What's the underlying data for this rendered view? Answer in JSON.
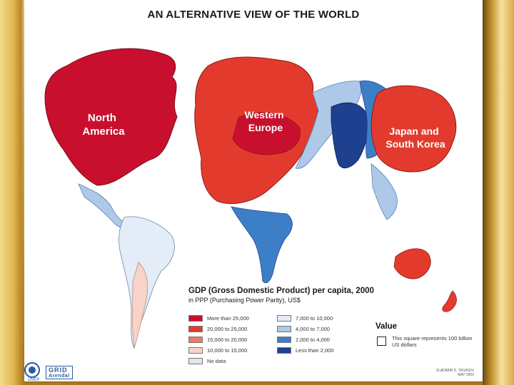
{
  "title": "AN ALTERNATIVE VIEW OF THE WORLD",
  "regions": {
    "north_america": [
      "North",
      "America"
    ],
    "western_europe": [
      "Western",
      "Europe"
    ],
    "japan_korea": [
      "Japan and",
      "South Korea"
    ]
  },
  "legend": {
    "title": "GDP (Gross Domestic Product) per capita, 2000",
    "subtitle": "in PPP (Purchasing Power Parity), US$",
    "left": [
      {
        "label": "More than 25,000",
        "color": "#c8102e"
      },
      {
        "label": "20,000 to 25,000",
        "color": "#e23b2e"
      },
      {
        "label": "15,000 to 20,000",
        "color": "#ec7a63"
      },
      {
        "label": "10,000 to 15,000",
        "color": "#f7d3c8"
      },
      {
        "label": "No data",
        "color": "#e6e6e6"
      }
    ],
    "right": [
      {
        "label": "7,000 to 10,000",
        "color": "#e3ecf7"
      },
      {
        "label": "4,000 to 7,000",
        "color": "#aec9e8"
      },
      {
        "label": "2,000 to 4,000",
        "color": "#3d7fc6"
      },
      {
        "label": "Less than 2,000",
        "color": "#1f3f8f"
      }
    ],
    "value_title": "Value",
    "value_note": "This square represents 100 billion US dollars"
  },
  "credit": {
    "line1": "VLADIMIR S. TIKUNOV",
    "line2": "MAY 2002"
  },
  "logos": {
    "unep": "UNEP",
    "grid": "GRID",
    "arendal": "Arendal"
  }
}
